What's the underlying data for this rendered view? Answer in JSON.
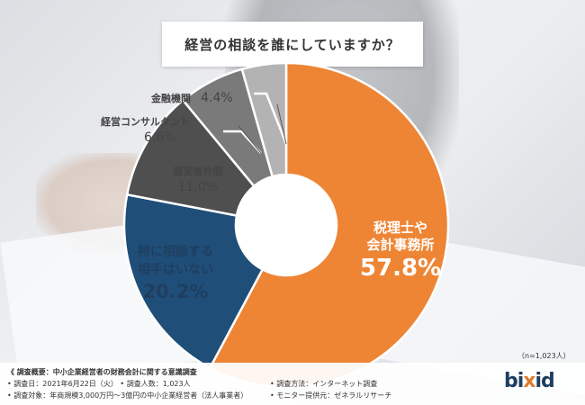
{
  "title": "経営の相談を誰にしていますか？",
  "chart_data": {
    "type": "pie",
    "donut": true,
    "title": "経営の相談を誰にしていますか？",
    "series": [
      {
        "label": "税理士や会計事務所",
        "value": 57.8,
        "value_text": "57.8%",
        "color": "#ee8535"
      },
      {
        "label": "特に相談する相手はいない",
        "value": 20.2,
        "value_text": "20.2%",
        "color": "#1f4e79"
      },
      {
        "label": "経営者仲間",
        "value": 11.0,
        "value_text": "11.0%",
        "color": "#4f4f4f"
      },
      {
        "label": "経営コンサルタント",
        "value": 6.6,
        "value_text": "6.6%",
        "color": "#7a7a7a"
      },
      {
        "label": "金融機関",
        "value": 4.4,
        "value_text": "4.4%",
        "color": "#b3b3b3"
      }
    ],
    "labels": {
      "tax": {
        "line1": "税理士や",
        "line2": "会計事務所"
      },
      "none": {
        "line1": "特に相談する",
        "line2": "相手はいない"
      }
    }
  },
  "n_note": "（n=1,023人）",
  "footer": {
    "heading": "《 調査概要：中小企業経営者の財務会計に関する意識調査",
    "date": "• 調査日：2021年6月22日（火） • 調査人数：1,023人",
    "target": "• 調査対象：年商規模3,000万円〜3億円の中小企業経営者（法人事業者）",
    "method": "• 調査方法：インターネット調査",
    "monitor": "• モニター提供元：ゼネラルリサーチ",
    "logo_prefix": "bi",
    "logo_accent": "x",
    "logo_suffix": "id"
  }
}
